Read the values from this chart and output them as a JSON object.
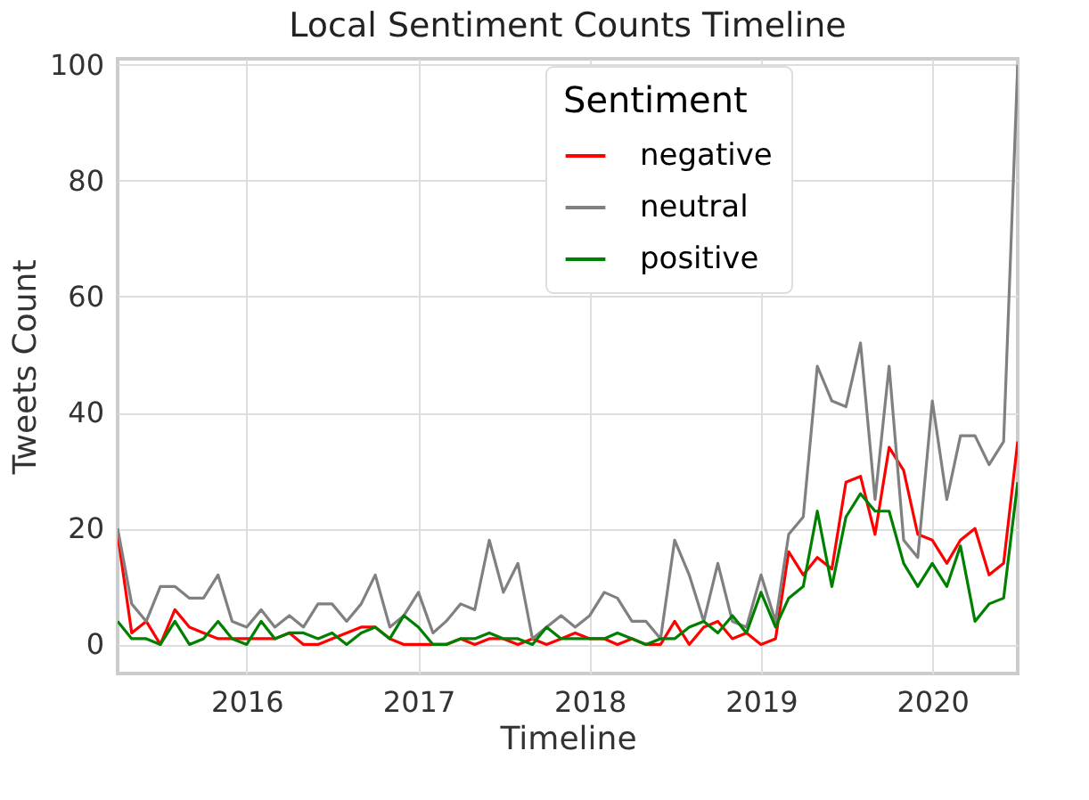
{
  "chart_data": {
    "type": "line",
    "title": "Local Sentiment Counts Timeline",
    "xlabel": "Timeline",
    "ylabel": "Tweets Count",
    "legend_title": "Sentiment",
    "x": [
      "2015-04",
      "2015-05",
      "2015-06",
      "2015-07",
      "2015-08",
      "2015-09",
      "2015-10",
      "2015-11",
      "2015-12",
      "2016-01",
      "2016-02",
      "2016-03",
      "2016-04",
      "2016-05",
      "2016-06",
      "2016-07",
      "2016-08",
      "2016-09",
      "2016-10",
      "2016-11",
      "2016-12",
      "2017-01",
      "2017-02",
      "2017-03",
      "2017-04",
      "2017-05",
      "2017-06",
      "2017-07",
      "2017-08",
      "2017-09",
      "2017-10",
      "2017-11",
      "2017-12",
      "2018-01",
      "2018-02",
      "2018-03",
      "2018-04",
      "2018-05",
      "2018-06",
      "2018-07",
      "2018-08",
      "2018-09",
      "2018-10",
      "2018-11",
      "2018-12",
      "2019-01",
      "2019-02",
      "2019-03",
      "2019-04",
      "2019-05",
      "2019-06",
      "2019-07",
      "2019-08",
      "2019-09",
      "2019-10",
      "2019-11",
      "2019-12",
      "2020-01",
      "2020-02",
      "2020-03",
      "2020-04",
      "2020-05",
      "2020-06",
      "2020-07"
    ],
    "series": [
      {
        "name": "negative",
        "color": "#ff0000",
        "values": [
          19,
          2,
          4,
          0,
          6,
          3,
          2,
          1,
          1,
          1,
          1,
          1,
          2,
          0,
          0,
          1,
          2,
          3,
          3,
          1,
          0,
          0,
          0,
          0,
          1,
          0,
          1,
          1,
          0,
          1,
          0,
          1,
          2,
          1,
          1,
          0,
          1,
          0,
          0,
          4,
          0,
          3,
          4,
          1,
          2,
          0,
          1,
          16,
          12,
          15,
          13,
          28,
          29,
          19,
          34,
          30,
          19,
          18,
          14,
          18,
          20,
          12,
          14,
          35
        ]
      },
      {
        "name": "neutral",
        "color": "#808080",
        "values": [
          20,
          7,
          4,
          10,
          10,
          8,
          8,
          12,
          4,
          3,
          6,
          3,
          5,
          3,
          7,
          7,
          4,
          7,
          12,
          3,
          5,
          9,
          2,
          4,
          7,
          6,
          18,
          9,
          14,
          1,
          3,
          5,
          3,
          5,
          9,
          8,
          4,
          4,
          1,
          18,
          12,
          4,
          14,
          4,
          3,
          12,
          4,
          19,
          22,
          48,
          42,
          41,
          52,
          25,
          48,
          18,
          15,
          42,
          25,
          36,
          36,
          31,
          35,
          100
        ]
      },
      {
        "name": "positive",
        "color": "#008000",
        "values": [
          4,
          1,
          1,
          0,
          4,
          0,
          1,
          4,
          1,
          0,
          4,
          1,
          2,
          2,
          1,
          2,
          0,
          2,
          3,
          1,
          5,
          3,
          0,
          0,
          1,
          1,
          2,
          1,
          1,
          0,
          3,
          1,
          1,
          1,
          1,
          2,
          1,
          0,
          1,
          1,
          3,
          4,
          2,
          5,
          2,
          9,
          3,
          8,
          10,
          23,
          10,
          22,
          26,
          23,
          23,
          14,
          10,
          14,
          10,
          17,
          4,
          7,
          8,
          28
        ]
      }
    ],
    "xlim": [
      "2015-04",
      "2020-07"
    ],
    "xticks": [
      "2016",
      "2017",
      "2018",
      "2019",
      "2020"
    ],
    "ylim": [
      -5,
      101
    ],
    "yticks": [
      0,
      20,
      40,
      60,
      80,
      100
    ],
    "grid": true,
    "legend": "top",
    "line_style": "solid",
    "marker": "none"
  }
}
